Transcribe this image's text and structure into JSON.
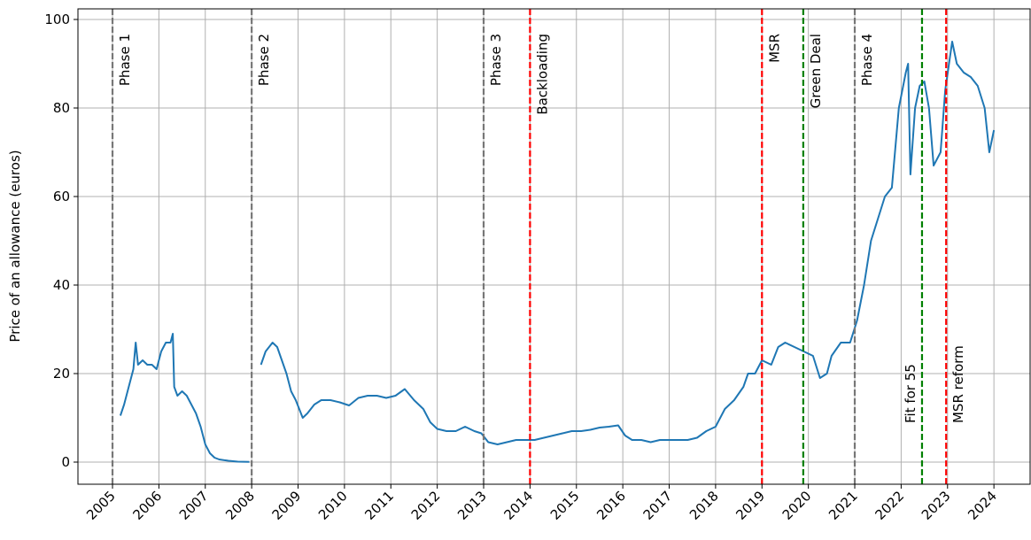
{
  "chart_data": {
    "type": "line",
    "y_label": "Price of an allowance (euros)",
    "xlim": [
      2004.255,
      2024.78
    ],
    "ylim": [
      -5,
      102.4
    ],
    "xticks": [
      2005,
      2006,
      2007,
      2008,
      2009,
      2010,
      2011,
      2012,
      2013,
      2014,
      2015,
      2016,
      2017,
      2018,
      2019,
      2020,
      2021,
      2022,
      2023,
      2024
    ],
    "yticks": [
      0,
      20,
      40,
      60,
      80,
      100
    ],
    "grid": true,
    "x": [
      2005.17,
      2005.25,
      2005.35,
      2005.45,
      2005.5,
      2005.55,
      2005.65,
      2005.75,
      2005.85,
      2005.95,
      2006.05,
      2006.15,
      2006.25,
      2006.3,
      2006.33,
      2006.4,
      2006.5,
      2006.6,
      2006.7,
      2006.8,
      2006.9,
      2007.0,
      2007.1,
      2007.2,
      2007.3,
      2007.5,
      2007.7,
      2007.95,
      2008.1,
      2008.2,
      2008.3,
      2008.45,
      2008.55,
      2008.65,
      2008.75,
      2008.85,
      2008.95,
      2009.1,
      2009.2,
      2009.35,
      2009.5,
      2009.7,
      2009.9,
      2010.1,
      2010.3,
      2010.5,
      2010.7,
      2010.9,
      2011.1,
      2011.3,
      2011.5,
      2011.7,
      2011.85,
      2012.0,
      2012.2,
      2012.4,
      2012.6,
      2012.8,
      2012.95,
      2013.1,
      2013.3,
      2013.5,
      2013.7,
      2013.9,
      2014.1,
      2014.3,
      2014.5,
      2014.7,
      2014.9,
      2015.1,
      2015.3,
      2015.5,
      2015.7,
      2015.9,
      2016.05,
      2016.2,
      2016.4,
      2016.6,
      2016.8,
      2017.0,
      2017.2,
      2017.4,
      2017.6,
      2017.8,
      2018.0,
      2018.2,
      2018.4,
      2018.6,
      2018.7,
      2018.85,
      2019.0,
      2019.2,
      2019.35,
      2019.5,
      2019.7,
      2019.9,
      2020.1,
      2020.25,
      2020.4,
      2020.5,
      2020.7,
      2020.9,
      2021.05,
      2021.2,
      2021.35,
      2021.5,
      2021.65,
      2021.8,
      2021.95,
      2022.1,
      2022.15,
      2022.2,
      2022.3,
      2022.4,
      2022.5,
      2022.6,
      2022.7,
      2022.85,
      2022.95,
      2023.1,
      2023.2,
      2023.35,
      2023.5,
      2023.65,
      2023.8,
      2023.9,
      2024.0
    ],
    "series": [
      {
        "color": "#1f77b4",
        "values": [
          10.5,
          13,
          17,
          21,
          27,
          22,
          23,
          22,
          22,
          21,
          25,
          27,
          27,
          29,
          17,
          15,
          16,
          15,
          13,
          11,
          8,
          4,
          2,
          1,
          0.6,
          0.3,
          0.1,
          0.05,
          null,
          22,
          25,
          27,
          26,
          23,
          20,
          16,
          14,
          10,
          11,
          13,
          14,
          14,
          13.5,
          12.8,
          14.5,
          15,
          15,
          14.5,
          15,
          16.5,
          14,
          12,
          9,
          7.5,
          7,
          7,
          8,
          7,
          6.5,
          4.5,
          4,
          4.5,
          5,
          5,
          5,
          5.5,
          6,
          6.5,
          7,
          7,
          7.3,
          7.8,
          8,
          8.3,
          6,
          5,
          5,
          4.5,
          5,
          5,
          5,
          5,
          5.5,
          7,
          8,
          12,
          14,
          17,
          20,
          20,
          23,
          22,
          26,
          27,
          26,
          25,
          24,
          19,
          20,
          24,
          27,
          27,
          32,
          40,
          50,
          55,
          60,
          62,
          80,
          88,
          90,
          65,
          80,
          85,
          86,
          80,
          67,
          70,
          84,
          95,
          90,
          88,
          87,
          85,
          80,
          70,
          75
        ]
      }
    ],
    "events": [
      {
        "x": 2005,
        "label": "Phase 1",
        "color": "#777777",
        "style": "dashed",
        "label_position": "top",
        "label_side": "right"
      },
      {
        "x": 2008,
        "label": "Phase 2",
        "color": "#777777",
        "style": "dashed",
        "label_position": "top",
        "label_side": "right"
      },
      {
        "x": 2013,
        "label": "Phase 3",
        "color": "#777777",
        "style": "dashed",
        "label_position": "top",
        "label_side": "right"
      },
      {
        "x": 2014,
        "label": "Backloading",
        "color": "#ff0000",
        "style": "dashed",
        "label_position": "top",
        "label_side": "right"
      },
      {
        "x": 2019,
        "label": "MSR",
        "color": "#ff0000",
        "style": "dashed",
        "label_position": "top",
        "label_side": "right"
      },
      {
        "x": 2019.89,
        "label": "Green Deal",
        "color": "#008000",
        "style": "dashed",
        "label_position": "top",
        "label_side": "right"
      },
      {
        "x": 2021,
        "label": "Phase 4",
        "color": "#777777",
        "style": "dashed",
        "label_position": "top",
        "label_side": "right"
      },
      {
        "x": 2022.45,
        "label": "Fit for 55",
        "color": "#008000",
        "style": "dashed",
        "label_position": "bottom",
        "label_side": "left"
      },
      {
        "x": 2022.97,
        "label": "MSR reform",
        "color": "#ff0000",
        "style": "dashed",
        "label_position": "bottom",
        "label_side": "right"
      }
    ]
  }
}
